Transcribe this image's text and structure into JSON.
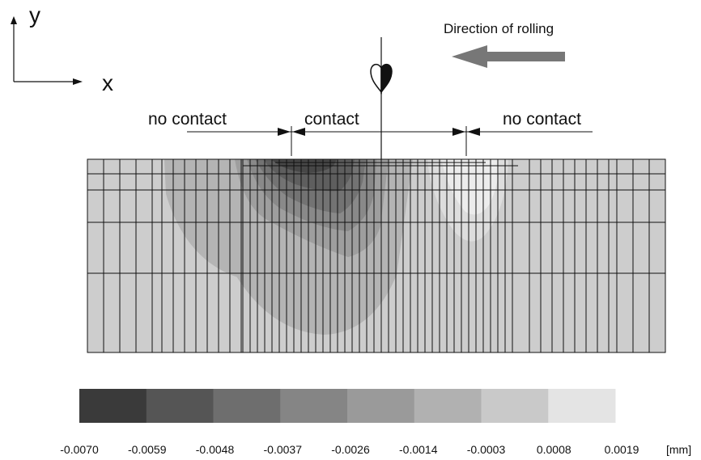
{
  "axes": {
    "y_label": "y",
    "x_label": "x"
  },
  "direction_label": "Direction of rolling",
  "zones": {
    "left": "no contact",
    "middle": "contact",
    "right": "no contact"
  },
  "legend": {
    "unit": "[mm]",
    "ticks": [
      "-0.0070",
      "-0.0059",
      "-0.0048",
      "-0.0037",
      "-0.0026",
      "-0.0014",
      "-0.0003",
      "0.0008",
      "0.0019"
    ],
    "colors": [
      "#3a3a3a",
      "#555555",
      "#6e6e6e",
      "#858585",
      "#9a9a9a",
      "#b1b1b1",
      "#c9c9c9",
      "#e4e4e4"
    ]
  },
  "colors": {
    "background": "#cdcdcd",
    "arrow": "#777777",
    "mesh": "#111111"
  }
}
